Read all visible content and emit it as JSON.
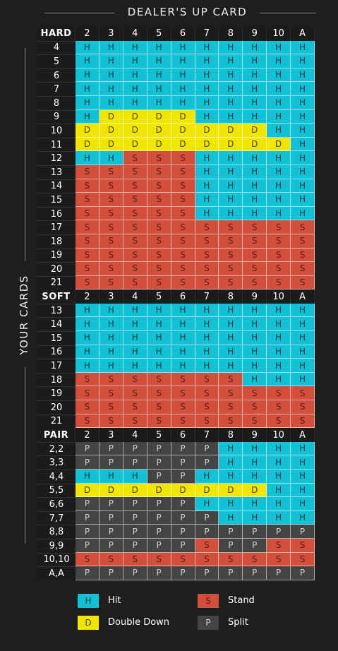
{
  "title": "DEALER'S UP CARD",
  "side_label": "YOUR CARDS",
  "dealer_cards": [
    "2",
    "3",
    "4",
    "5",
    "6",
    "7",
    "8",
    "9",
    "10",
    "A"
  ],
  "sections": [
    {
      "label": "HARD",
      "rows": [
        {
          "hand": "4",
          "actions": [
            "H",
            "H",
            "H",
            "H",
            "H",
            "H",
            "H",
            "H",
            "H",
            "H"
          ]
        },
        {
          "hand": "5",
          "actions": [
            "H",
            "H",
            "H",
            "H",
            "H",
            "H",
            "H",
            "H",
            "H",
            "H"
          ]
        },
        {
          "hand": "6",
          "actions": [
            "H",
            "H",
            "H",
            "H",
            "H",
            "H",
            "H",
            "H",
            "H",
            "H"
          ]
        },
        {
          "hand": "7",
          "actions": [
            "H",
            "H",
            "H",
            "H",
            "H",
            "H",
            "H",
            "H",
            "H",
            "H"
          ]
        },
        {
          "hand": "8",
          "actions": [
            "H",
            "H",
            "H",
            "H",
            "H",
            "H",
            "H",
            "H",
            "H",
            "H"
          ]
        },
        {
          "hand": "9",
          "actions": [
            "H",
            "D",
            "D",
            "D",
            "D",
            "H",
            "H",
            "H",
            "H",
            "H"
          ]
        },
        {
          "hand": "10",
          "actions": [
            "D",
            "D",
            "D",
            "D",
            "D",
            "D",
            "D",
            "D",
            "H",
            "H"
          ]
        },
        {
          "hand": "11",
          "actions": [
            "D",
            "D",
            "D",
            "D",
            "D",
            "D",
            "D",
            "D",
            "D",
            "H"
          ]
        },
        {
          "hand": "12",
          "actions": [
            "H",
            "H",
            "S",
            "S",
            "S",
            "H",
            "H",
            "H",
            "H",
            "H"
          ]
        },
        {
          "hand": "13",
          "actions": [
            "S",
            "S",
            "S",
            "S",
            "S",
            "H",
            "H",
            "H",
            "H",
            "H"
          ]
        },
        {
          "hand": "14",
          "actions": [
            "S",
            "S",
            "S",
            "S",
            "S",
            "H",
            "H",
            "H",
            "H",
            "H"
          ]
        },
        {
          "hand": "15",
          "actions": [
            "S",
            "S",
            "S",
            "S",
            "S",
            "H",
            "H",
            "H",
            "H",
            "H"
          ]
        },
        {
          "hand": "16",
          "actions": [
            "S",
            "S",
            "S",
            "S",
            "S",
            "H",
            "H",
            "H",
            "H",
            "H"
          ]
        },
        {
          "hand": "17",
          "actions": [
            "S",
            "S",
            "S",
            "S",
            "S",
            "S",
            "S",
            "S",
            "S",
            "S"
          ]
        },
        {
          "hand": "18",
          "actions": [
            "S",
            "S",
            "S",
            "S",
            "S",
            "S",
            "S",
            "S",
            "S",
            "S"
          ]
        },
        {
          "hand": "19",
          "actions": [
            "S",
            "S",
            "S",
            "S",
            "S",
            "S",
            "S",
            "S",
            "S",
            "S"
          ]
        },
        {
          "hand": "20",
          "actions": [
            "S",
            "S",
            "S",
            "S",
            "S",
            "S",
            "S",
            "S",
            "S",
            "S"
          ]
        },
        {
          "hand": "21",
          "actions": [
            "S",
            "S",
            "S",
            "S",
            "S",
            "S",
            "S",
            "S",
            "S",
            "S"
          ]
        }
      ]
    },
    {
      "label": "SOFT",
      "rows": [
        {
          "hand": "13",
          "actions": [
            "H",
            "H",
            "H",
            "H",
            "H",
            "H",
            "H",
            "H",
            "H",
            "H"
          ]
        },
        {
          "hand": "14",
          "actions": [
            "H",
            "H",
            "H",
            "H",
            "H",
            "H",
            "H",
            "H",
            "H",
            "H"
          ]
        },
        {
          "hand": "15",
          "actions": [
            "H",
            "H",
            "H",
            "H",
            "H",
            "H",
            "H",
            "H",
            "H",
            "H"
          ]
        },
        {
          "hand": "16",
          "actions": [
            "H",
            "H",
            "H",
            "H",
            "H",
            "H",
            "H",
            "H",
            "H",
            "H"
          ]
        },
        {
          "hand": "17",
          "actions": [
            "H",
            "H",
            "H",
            "H",
            "H",
            "H",
            "H",
            "H",
            "H",
            "H"
          ]
        },
        {
          "hand": "18",
          "actions": [
            "S",
            "S",
            "S",
            "S",
            "S",
            "S",
            "S",
            "H",
            "H",
            "H"
          ]
        },
        {
          "hand": "19",
          "actions": [
            "S",
            "S",
            "S",
            "S",
            "S",
            "S",
            "S",
            "S",
            "S",
            "S"
          ]
        },
        {
          "hand": "20",
          "actions": [
            "S",
            "S",
            "S",
            "S",
            "S",
            "S",
            "S",
            "S",
            "S",
            "S"
          ]
        },
        {
          "hand": "21",
          "actions": [
            "S",
            "S",
            "S",
            "S",
            "S",
            "S",
            "S",
            "S",
            "S",
            "S"
          ]
        }
      ]
    },
    {
      "label": "PAIR",
      "rows": [
        {
          "hand": "2,2",
          "actions": [
            "P",
            "P",
            "P",
            "P",
            "P",
            "P",
            "H",
            "H",
            "H",
            "H"
          ]
        },
        {
          "hand": "3,3",
          "actions": [
            "P",
            "P",
            "P",
            "P",
            "P",
            "P",
            "H",
            "H",
            "H",
            "H"
          ]
        },
        {
          "hand": "4,4",
          "actions": [
            "H",
            "H",
            "H",
            "P",
            "P",
            "H",
            "H",
            "H",
            "H",
            "H"
          ]
        },
        {
          "hand": "5,5",
          "actions": [
            "D",
            "D",
            "D",
            "D",
            "D",
            "D",
            "D",
            "D",
            "H",
            "H"
          ]
        },
        {
          "hand": "6,6",
          "actions": [
            "P",
            "P",
            "P",
            "P",
            "P",
            "H",
            "H",
            "H",
            "H",
            "H"
          ]
        },
        {
          "hand": "7,7",
          "actions": [
            "P",
            "P",
            "P",
            "P",
            "P",
            "P",
            "H",
            "H",
            "H",
            "H"
          ]
        },
        {
          "hand": "8,8",
          "actions": [
            "P",
            "P",
            "P",
            "P",
            "P",
            "P",
            "P",
            "P",
            "P",
            "P"
          ]
        },
        {
          "hand": "9,9",
          "actions": [
            "P",
            "P",
            "P",
            "P",
            "P",
            "S",
            "P",
            "P",
            "S",
            "S"
          ]
        },
        {
          "hand": "10,10",
          "actions": [
            "S",
            "S",
            "S",
            "S",
            "S",
            "S",
            "S",
            "S",
            "S",
            "S"
          ]
        },
        {
          "hand": "A,A",
          "actions": [
            "P",
            "P",
            "P",
            "P",
            "P",
            "P",
            "P",
            "P",
            "P",
            "P"
          ]
        }
      ]
    }
  ],
  "legend": [
    {
      "code": "H",
      "label": "Hit",
      "color": "#12c1d4"
    },
    {
      "code": "S",
      "label": "Stand",
      "color": "#d24f3c"
    },
    {
      "code": "D",
      "label": "Double Down",
      "color": "#f1e600"
    },
    {
      "code": "P",
      "label": "Split",
      "color": "#444444"
    }
  ]
}
